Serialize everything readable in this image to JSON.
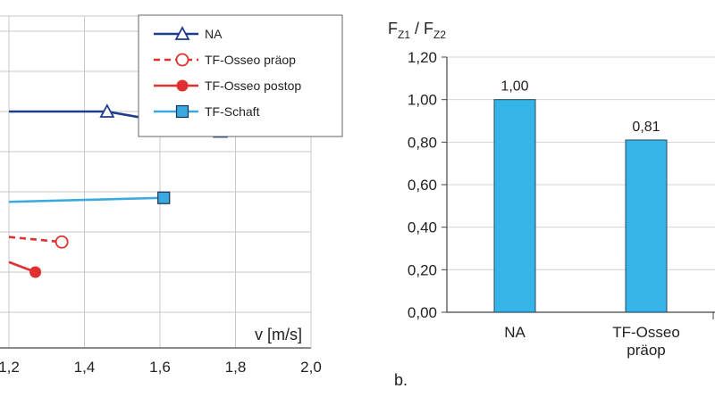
{
  "chart_data": [
    {
      "type": "line",
      "xlabel": "v [m/s]",
      "xlim": [
        1.2,
        2.0
      ],
      "x_ticks": [
        "1,2",
        "1,4",
        "1,6",
        "1,8",
        "2,0"
      ],
      "grid": true,
      "legend_position": "top-right",
      "series": [
        {
          "name": "NA",
          "color": "#1f3d8a",
          "marker": "triangle-open",
          "line_style": "solid",
          "x": [
            1.2,
            1.46,
            1.76
          ],
          "y": [
            1.0,
            1.0,
            0.9
          ]
        },
        {
          "name": "TF-Osseo präop",
          "color": "#e03030",
          "marker": "circle-open",
          "line_style": "dashed",
          "x": [
            1.2,
            1.34
          ],
          "y": [
            0.375,
            0.35
          ]
        },
        {
          "name": "TF-Osseo postop",
          "color": "#e03030",
          "marker": "circle-filled",
          "line_style": "solid",
          "x": [
            1.2,
            1.27
          ],
          "y": [
            0.25,
            0.2
          ]
        },
        {
          "name": "TF-Schaft",
          "color": "#3aa9e0",
          "marker": "square-filled",
          "line_style": "solid",
          "x": [
            1.2,
            1.61
          ],
          "y": [
            0.55,
            0.57
          ]
        }
      ]
    },
    {
      "type": "bar",
      "ylabel": "F_Z1 / F_Z2",
      "ylim": [
        0,
        1.2
      ],
      "y_ticks": [
        "0,00",
        "0,20",
        "0,40",
        "0,60",
        "0,80",
        "1,00",
        "1,20"
      ],
      "categories": [
        [
          "NA"
        ],
        [
          "TF-Osseo",
          "präop"
        ]
      ],
      "values": [
        1.0,
        0.81
      ],
      "value_labels": [
        "1,00",
        "0,81"
      ],
      "bar_color": "#35b4e8",
      "panel_label": "b."
    }
  ]
}
